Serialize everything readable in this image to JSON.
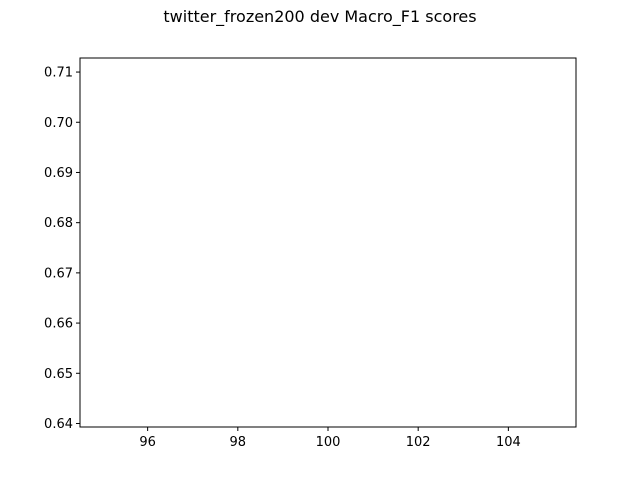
{
  "chart_data": {
    "type": "line",
    "title": "twitter_frozen200 dev Macro_F1 scores",
    "xlabel": "",
    "ylabel": "",
    "xlim": [
      94.5,
      105.5
    ],
    "ylim": [
      0.6393,
      0.7128
    ],
    "x_ticks": [
      96,
      98,
      100,
      102,
      104
    ],
    "x_tick_labels": [
      "96",
      "98",
      "100",
      "102",
      "104"
    ],
    "y_ticks": [
      0.64,
      0.65,
      0.66,
      0.67,
      0.68,
      0.69,
      0.7,
      0.71
    ],
    "y_tick_labels": [
      "0.64",
      "0.65",
      "0.66",
      "0.67",
      "0.68",
      "0.69",
      "0.70",
      "0.71"
    ],
    "series": [],
    "grid": false,
    "legend": "none"
  }
}
